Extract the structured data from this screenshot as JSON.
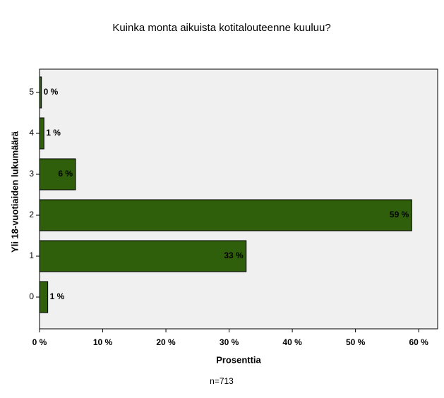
{
  "chart_data": {
    "type": "hbar",
    "title": "Kuinka monta aikuista kotitalouteenne kuuluu?",
    "x_label": "Prosenttia",
    "y_label": "Yli 18-vuotiaiden lukumäärä",
    "note": "n=713",
    "categories": [
      "0",
      "1",
      "2",
      "3",
      "4",
      "5"
    ],
    "values": [
      1.3,
      32.7,
      58.9,
      5.7,
      0.7,
      0.3
    ],
    "value_labels": [
      "1 %",
      "33 %",
      "59 %",
      "6 %",
      "1 %",
      "0 %"
    ],
    "color": "#2f5f0a",
    "xlim": [
      0,
      63
    ],
    "xticks": [
      {
        "value": 0,
        "label": "0 %"
      },
      {
        "value": 10,
        "label": "10 %"
      },
      {
        "value": 20,
        "label": "20 %"
      },
      {
        "value": 30,
        "label": "30 %"
      },
      {
        "value": 40,
        "label": "40 %"
      },
      {
        "value": 50,
        "label": "50 %"
      },
      {
        "value": 60,
        "label": "60 %"
      }
    ]
  }
}
